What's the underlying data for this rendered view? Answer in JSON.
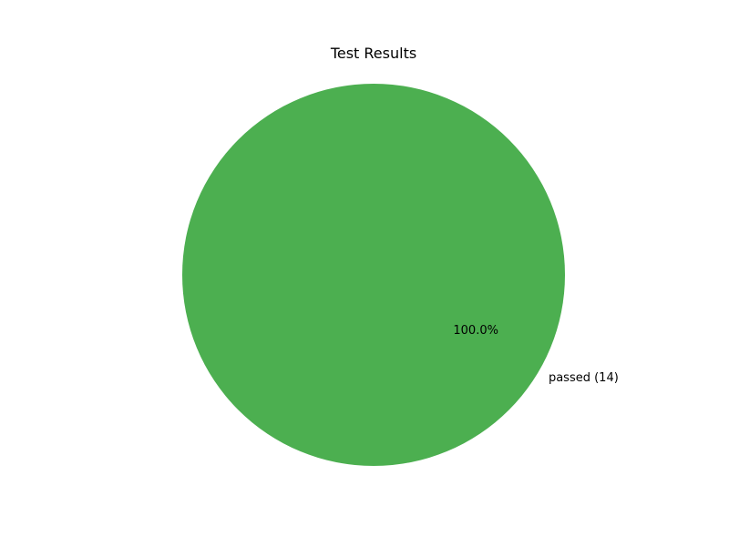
{
  "chart_data": {
    "type": "pie",
    "title": "Test Results",
    "slices": [
      {
        "label": "passed (14)",
        "category": "passed",
        "value": 14,
        "percent_label": "100.0%",
        "color": "#4caf50"
      }
    ]
  }
}
